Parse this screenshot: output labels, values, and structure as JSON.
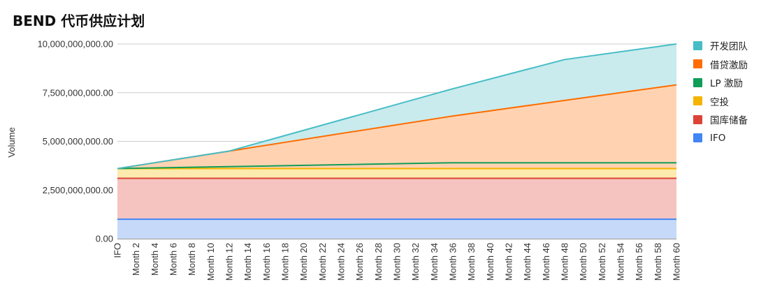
{
  "title": "BEND 代币供应计划",
  "chart_data": {
    "type": "area",
    "stacked": true,
    "title": "BEND 代币供应计划",
    "xlabel": "",
    "ylabel": "Volume",
    "ylim": [
      0,
      10000000000
    ],
    "yticks": [
      0,
      2500000000,
      5000000000,
      7500000000,
      10000000000
    ],
    "ytick_labels": [
      "0.00",
      "2,500,000,000.00",
      "5,000,000,000.00",
      "7,500,000,000.00",
      "10,000,000,000.00"
    ],
    "x_tick_labels": [
      "IFO",
      "Month 2",
      "Month 4",
      "Month 6",
      "Month 8",
      "Month 10",
      "Month 12",
      "Month 14",
      "Month 16",
      "Month 18",
      "Month 20",
      "Month 22",
      "Month 24",
      "Month 26",
      "Month 28",
      "Month 30",
      "Month 32",
      "Month 34",
      "Month 36",
      "Month 38",
      "Month 40",
      "Month 42",
      "Month 44",
      "Month 46",
      "Month 48",
      "Month 50",
      "Month 52",
      "Month 54",
      "Month 56",
      "Month 58",
      "Month 60"
    ],
    "x_months": [
      0,
      12,
      36,
      48,
      60
    ],
    "cumulative_series": [
      {
        "name": "IFO",
        "color": "#4285f4",
        "fill": "#c6d9f9",
        "values": [
          1000000000,
          1000000000,
          1000000000,
          1000000000,
          1000000000
        ]
      },
      {
        "name": "国库储备",
        "color": "#db4437",
        "fill": "#f6c4c0",
        "values": [
          3100000000,
          3100000000,
          3100000000,
          3100000000,
          3100000000
        ]
      },
      {
        "name": "空投",
        "color": "#f4b400",
        "fill": "#fceaae",
        "values": [
          3600000000,
          3600000000,
          3600000000,
          3600000000,
          3600000000
        ]
      },
      {
        "name": "LP 激励",
        "color": "#0f9d58",
        "fill": "#ffd3b2",
        "values": [
          3600000000,
          3700000000,
          3900000000,
          3900000000,
          3900000000
        ]
      },
      {
        "name": "借贷激励",
        "color": "#ff6d01",
        "fill": "#ffd3b2",
        "values": [
          3600000000,
          4500000000,
          6300000000,
          7100000000,
          7900000000
        ]
      },
      {
        "name": "开发团队",
        "color": "#46bdc6",
        "fill": "#c9ebed",
        "values": [
          3600000000,
          4500000000,
          7700000000,
          9200000000,
          10000000000
        ]
      }
    ],
    "legend_position": "right",
    "grid": true
  },
  "legend": [
    {
      "label": "开发团队",
      "color": "#46bdc6"
    },
    {
      "label": "借贷激励",
      "color": "#ff6d01"
    },
    {
      "label": "LP 激励",
      "color": "#0f9d58"
    },
    {
      "label": "空投",
      "color": "#f4b400"
    },
    {
      "label": "国库储备",
      "color": "#db4437"
    },
    {
      "label": "IFO",
      "color": "#4285f4"
    }
  ]
}
